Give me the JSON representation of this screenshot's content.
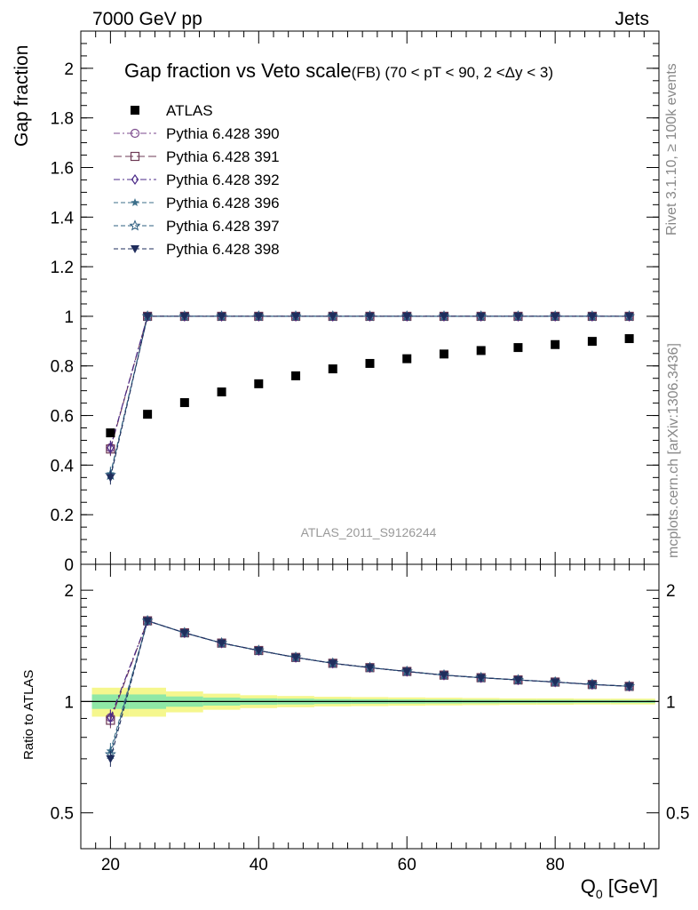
{
  "header": {
    "left": "7000 GeV pp",
    "right": "Jets"
  },
  "side_labels": {
    "rivet": "Rivet 3.1.10, ≥ 100k events",
    "mcplots": "mcplots.cern.ch [arXiv:1306.3436]"
  },
  "chart_data": [
    {
      "type": "scatter",
      "panel": "main",
      "title": "Gap fraction vs Veto scale",
      "subtitle": "(FB) (70 < pT <  90, 2 <Δy < 3)",
      "ylabel": "Gap fraction",
      "ylim": [
        0,
        2.15
      ],
      "xlim": [
        16,
        94
      ],
      "yticks": [
        0,
        0.2,
        0.4,
        0.6,
        0.8,
        1,
        1.2,
        1.4,
        1.6,
        1.8,
        2
      ],
      "ytick_labels": [
        "0",
        "0.2",
        "0.4",
        "0.6",
        "0.8",
        "1",
        "1.2",
        "1.4",
        "1.6",
        "1.8",
        "2"
      ],
      "watermark": "ATLAS_2011_S9126244",
      "legend_position": "top-left",
      "x": [
        20,
        25,
        30,
        35,
        40,
        45,
        50,
        55,
        60,
        65,
        70,
        75,
        80,
        85,
        90
      ],
      "series": [
        {
          "name": "ATLAS",
          "marker": "filled-square",
          "color": "#000000",
          "line": "none",
          "values": [
            0.53,
            0.605,
            0.652,
            0.695,
            0.728,
            0.76,
            0.788,
            0.81,
            0.829,
            0.848,
            0.862,
            0.874,
            0.886,
            0.899,
            0.91
          ]
        },
        {
          "name": "Pythia 6.428 390",
          "marker": "open-circle",
          "color": "#7b4a8c",
          "line": "dashdot",
          "values": [
            0.47,
            1,
            1,
            1,
            1,
            1,
            1,
            1,
            1,
            1,
            1,
            1,
            1,
            1,
            1
          ]
        },
        {
          "name": "Pythia 6.428 391",
          "marker": "open-square",
          "color": "#6e3a55",
          "line": "longdash",
          "values": [
            0.465,
            1,
            1,
            1,
            1,
            1,
            1,
            1,
            1,
            1,
            1,
            1,
            1,
            1,
            1
          ]
        },
        {
          "name": "Pythia 6.428 392",
          "marker": "open-diamond",
          "color": "#4b2a88",
          "line": "dashdot",
          "values": [
            0.47,
            1,
            1,
            1,
            1,
            1,
            1,
            1,
            1,
            1,
            1,
            1,
            1,
            1,
            1
          ]
        },
        {
          "name": "Pythia 6.428 396",
          "marker": "filled-star",
          "color": "#3c6f8a",
          "line": "dashed",
          "values": [
            0.365,
            1,
            1,
            1,
            1,
            1,
            1,
            1,
            1,
            1,
            1,
            1,
            1,
            1,
            1
          ]
        },
        {
          "name": "Pythia 6.428 397",
          "marker": "open-star",
          "color": "#2e5f80",
          "line": "dashed",
          "values": [
            0.36,
            1,
            1,
            1,
            1,
            1,
            1,
            1,
            1,
            1,
            1,
            1,
            1,
            1,
            1
          ]
        },
        {
          "name": "Pythia 6.428 398",
          "marker": "filled-triangle-down",
          "color": "#1f2d5c",
          "line": "dashed",
          "values": [
            0.35,
            1,
            1,
            1,
            1,
            1,
            1,
            1,
            1,
            1,
            1,
            1,
            1,
            1,
            1
          ]
        }
      ]
    },
    {
      "type": "line",
      "panel": "ratio",
      "ylabel": "Ratio to ATLAS",
      "xlabel": "Q",
      "xlabel_sub": "0",
      "xlabel_unit": " [GeV]",
      "ylim": [
        0.4,
        2.35
      ],
      "xlim": [
        16,
        94
      ],
      "yscale": "log",
      "yticks": [
        0.5,
        1,
        2
      ],
      "ytick_labels": [
        "0.5",
        "1",
        "2"
      ],
      "xticks": [
        20,
        40,
        60,
        80
      ],
      "xtick_labels": [
        "20",
        "40",
        "60",
        "80"
      ],
      "x": [
        20,
        25,
        30,
        35,
        40,
        45,
        50,
        55,
        60,
        65,
        70,
        75,
        80,
        85,
        90
      ],
      "band_edges": [
        17.5,
        22.5,
        27.5,
        32.5,
        37.5,
        42.5,
        47.5,
        52.5,
        57.5,
        62.5,
        67.5,
        72.5,
        77.5,
        82.5,
        87.5,
        93.5
      ],
      "band_outer": [
        0.09,
        0.09,
        0.065,
        0.05,
        0.04,
        0.035,
        0.03,
        0.028,
        0.026,
        0.024,
        0.022,
        0.02,
        0.02,
        0.018,
        0.018
      ],
      "band_inner": [
        0.045,
        0.045,
        0.032,
        0.025,
        0.02,
        0.018,
        0.015,
        0.014,
        0.013,
        0.012,
        0.011,
        0.01,
        0.01,
        0.009,
        0.009
      ],
      "band_colors": {
        "outer": "#f5f78e",
        "inner": "#8fe8a6"
      },
      "series": [
        {
          "name": "Pythia 6.428 390",
          "color": "#7b4a8c",
          "values": [
            0.905,
            1.653,
            1.534,
            1.439,
            1.374,
            1.316,
            1.269,
            1.235,
            1.206,
            1.179,
            1.16,
            1.144,
            1.129,
            1.112,
            1.099
          ]
        },
        {
          "name": "Pythia 6.428 391",
          "color": "#6e3a55",
          "values": [
            0.89,
            1.653,
            1.534,
            1.439,
            1.374,
            1.316,
            1.269,
            1.235,
            1.206,
            1.179,
            1.16,
            1.144,
            1.129,
            1.112,
            1.099
          ]
        },
        {
          "name": "Pythia 6.428 392",
          "color": "#4b2a88",
          "values": [
            0.905,
            1.653,
            1.534,
            1.439,
            1.374,
            1.316,
            1.269,
            1.235,
            1.206,
            1.179,
            1.16,
            1.144,
            1.129,
            1.112,
            1.099
          ]
        },
        {
          "name": "Pythia 6.428 396",
          "color": "#3c6f8a",
          "values": [
            0.735,
            1.653,
            1.534,
            1.439,
            1.374,
            1.316,
            1.269,
            1.235,
            1.206,
            1.179,
            1.16,
            1.144,
            1.129,
            1.112,
            1.099
          ]
        },
        {
          "name": "Pythia 6.428 397",
          "color": "#2e5f80",
          "values": [
            0.72,
            1.653,
            1.534,
            1.439,
            1.374,
            1.316,
            1.269,
            1.235,
            1.206,
            1.179,
            1.16,
            1.144,
            1.129,
            1.112,
            1.099
          ]
        },
        {
          "name": "Pythia 6.428 398",
          "color": "#1f2d5c",
          "values": [
            0.7,
            1.653,
            1.534,
            1.439,
            1.374,
            1.316,
            1.269,
            1.235,
            1.206,
            1.179,
            1.16,
            1.144,
            1.129,
            1.112,
            1.099
          ]
        }
      ]
    }
  ]
}
